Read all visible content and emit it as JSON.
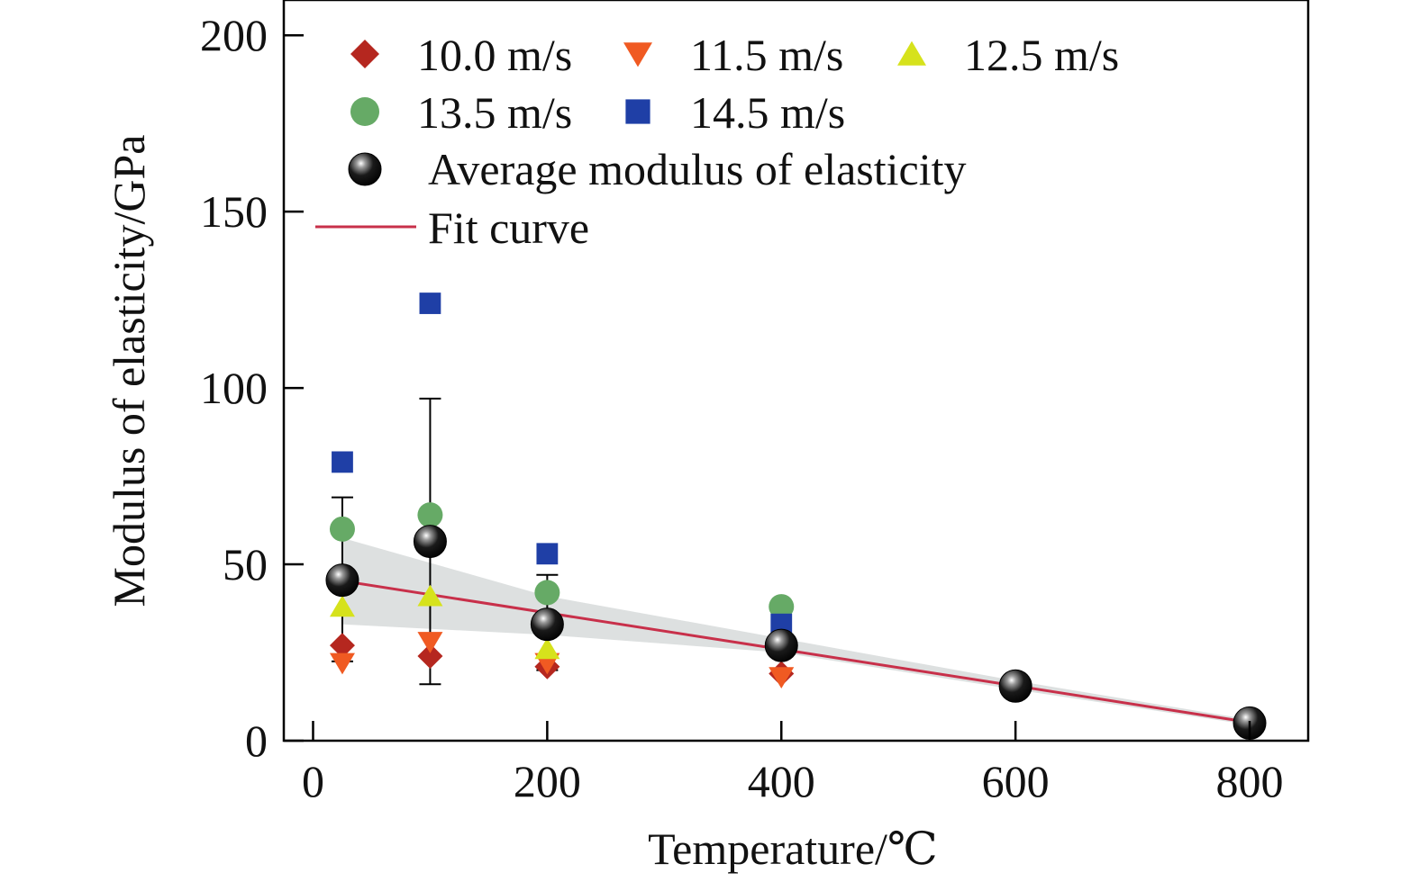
{
  "chart_data": {
    "type": "scatter",
    "xlabel": "Temperature/℃",
    "ylabel": "Modulus of elasticity/GPa",
    "xlim": [
      -25,
      850
    ],
    "ylim": [
      0,
      210
    ],
    "x_ticks": [
      0,
      200,
      400,
      600,
      800
    ],
    "y_ticks": [
      0,
      50,
      100,
      150,
      200
    ],
    "grid": false,
    "legend_position": "top-left",
    "series": [
      {
        "name": "10.0 m/s",
        "marker": "diamond",
        "color": "#b5271f",
        "points": [
          [
            25,
            27
          ],
          [
            100,
            24
          ],
          [
            200,
            21
          ],
          [
            400,
            19
          ]
        ]
      },
      {
        "name": "11.5 m/s",
        "marker": "triangle-down",
        "color": "#f05a22",
        "points": [
          [
            25,
            22
          ],
          [
            100,
            28
          ],
          [
            200,
            22
          ],
          [
            400,
            18
          ]
        ]
      },
      {
        "name": "12.5 m/s",
        "marker": "triangle-up",
        "color": "#d6e21c",
        "points": [
          [
            25,
            38
          ],
          [
            100,
            41
          ],
          [
            200,
            26
          ],
          [
            400,
            28
          ]
        ]
      },
      {
        "name": "13.5 m/s",
        "marker": "circle",
        "color": "#66aa66",
        "points": [
          [
            25,
            60
          ],
          [
            100,
            64
          ],
          [
            200,
            42
          ],
          [
            400,
            38
          ]
        ]
      },
      {
        "name": "14.5 m/s",
        "marker": "square",
        "color": "#1f3fa6",
        "points": [
          [
            25,
            79
          ],
          [
            100,
            124
          ],
          [
            200,
            53
          ],
          [
            400,
            33
          ]
        ]
      }
    ],
    "average": {
      "name": "Average modulus of elasticity",
      "marker": "sphere",
      "color": "#000000",
      "points": [
        [
          25,
          45.5
        ],
        [
          100,
          56.5
        ],
        [
          200,
          33
        ],
        [
          400,
          27
        ],
        [
          600,
          15.5
        ],
        [
          800,
          5
        ]
      ],
      "error_low": [
        22.5,
        16,
        20,
        25,
        null,
        null
      ],
      "error_high": [
        69,
        97,
        47,
        29,
        null,
        null
      ]
    },
    "fit": {
      "name": "Fit curve",
      "color": "#c8304a",
      "points": [
        [
          25,
          45.3
        ],
        [
          800,
          5.2
        ]
      ],
      "band_color": "#d5d8d8",
      "band_upper": [
        [
          25,
          57.5
        ],
        [
          200,
          41
        ],
        [
          400,
          29
        ],
        [
          600,
          17
        ],
        [
          800,
          6
        ]
      ],
      "band_lower": [
        [
          25,
          33
        ],
        [
          200,
          30
        ],
        [
          400,
          25
        ],
        [
          600,
          14.5
        ],
        [
          800,
          4.5
        ]
      ]
    }
  }
}
